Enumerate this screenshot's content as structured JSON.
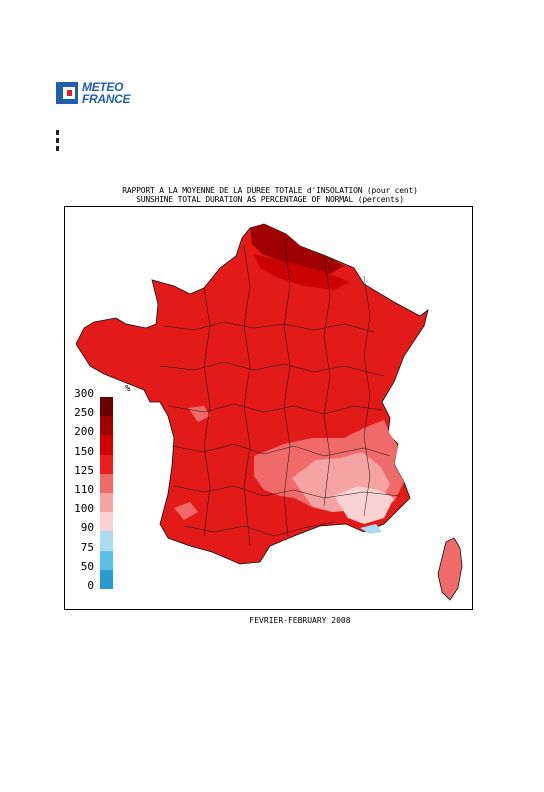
{
  "logo": {
    "line1": "METEO",
    "line2": "FRANCE"
  },
  "title": {
    "fr": "RAPPORT A LA MOYENNE DE LA DUREE TOTALE d'INSOLATION (pour cent)",
    "en": "SUNSHINE TOTAL DURATION AS PERCENTAGE OF NORMAL (percents)"
  },
  "legend": {
    "unit": "%",
    "items": [
      {
        "label": "300",
        "color": "#6b0000"
      },
      {
        "label": "250",
        "color": "#a00000"
      },
      {
        "label": "200",
        "color": "#d40000"
      },
      {
        "label": "150",
        "color": "#ee1c1c"
      },
      {
        "label": "125",
        "color": "#f06a6a"
      },
      {
        "label": "110",
        "color": "#f5a3a3"
      },
      {
        "label": "100",
        "color": "#fbd2d2"
      },
      {
        "label": "90",
        "color": "#a9dcf0"
      },
      {
        "label": "75",
        "color": "#5cc0e6"
      },
      {
        "label": "50",
        "color": "#2a9bd0"
      },
      {
        "label": "0",
        "color": "#0a6f99"
      }
    ]
  },
  "footer": "FEVRIER-FEBRUARY 2008"
}
